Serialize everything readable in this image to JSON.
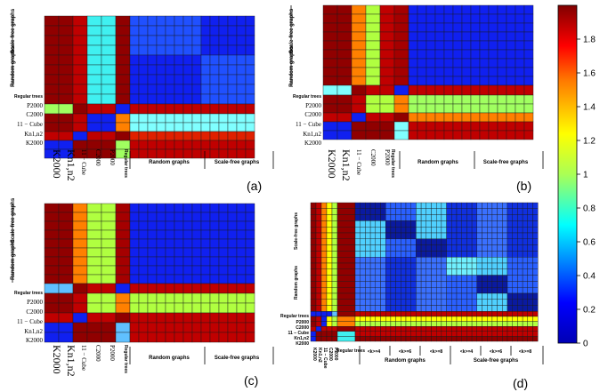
{
  "chart_data": [
    {
      "type": "heatmap",
      "panel_label": "(a)",
      "ticks": {
        "left_groups": [
          "Scale-free graphs",
          "Random graphs"
        ],
        "left_items": [
          "Regular trees",
          "P2000",
          "C2000",
          "11 − Cube",
          "Kn1,n2",
          "K2000"
        ],
        "bottom_items": [
          "K2000",
          "Kn1,n2",
          "11 − Cube",
          "C2000",
          "P2000",
          "Regular trees"
        ],
        "bottom_groups": [
          "Random graphs",
          "Scale-free graphs"
        ]
      }
    },
    {
      "type": "heatmap",
      "panel_label": "(b)",
      "ticks": {
        "left_groups": [
          "Scale-free graphs",
          "Random graphs"
        ],
        "left_items": [
          "Regular trees",
          "P2000",
          "C2000",
          "11 − Cube",
          "Kn1,n2",
          "K2000"
        ],
        "bottom_items": [
          "K2000",
          "Kn1,n2",
          "11 − Cube",
          "C2000",
          "P2000",
          "Regular trees"
        ],
        "bottom_groups": [
          "Random graphs",
          "Scale-free graphs"
        ]
      }
    },
    {
      "type": "heatmap",
      "panel_label": "(c)",
      "ticks": {
        "left_groups": [
          "Scale-free graphs",
          "Random graphs"
        ],
        "left_items": [
          "Regular trees",
          "P2000",
          "C2000",
          "11 − Cube",
          "Kn1,n2",
          "K2000"
        ],
        "bottom_items": [
          "K2000",
          "Kn1,n2",
          "11 − Cube",
          "C2000",
          "P2000",
          "Regular trees"
        ],
        "bottom_groups": [
          "Random graphs",
          "Scale-free graphs"
        ]
      }
    },
    {
      "type": "heatmap",
      "panel_label": "(d)",
      "ticks": {
        "left_groups": [
          "Scale-free graphs",
          "Random graphs",
          "Regular trees"
        ],
        "left_items": [
          "P2000",
          "C2000",
          "11 − Cube",
          "Kn1,n2",
          "K2000"
        ],
        "bottom_items": [
          "K2000",
          "Kn1,n2",
          "11 − Cube",
          "C2000",
          "P2000",
          "Regular trees"
        ],
        "bottom_subgroups": [
          "<k>=4",
          "<k>=6",
          "<k>=8",
          "<k>=4",
          "<k>=6",
          "<k>=8"
        ],
        "bottom_groups": [
          "Random graphs",
          "Scale-free graphs"
        ]
      }
    }
  ],
  "colorbar": {
    "ticks": [
      0,
      0.2,
      0.4,
      0.6,
      0.8,
      1,
      1.2,
      1.4,
      1.6,
      1.8
    ],
    "range": [
      0,
      2
    ],
    "labels": [
      "0",
      "0.2",
      "0.4",
      "0.6",
      "0.8",
      "1",
      "1.2",
      "1.4",
      "1.6",
      "1.8"
    ]
  }
}
